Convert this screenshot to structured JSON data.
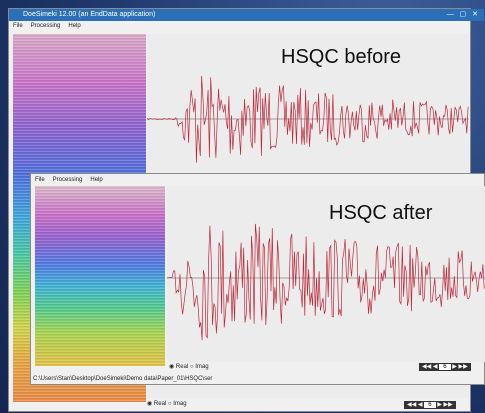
{
  "windows": [
    {
      "title": "DoeSimeki 12.00 (an EndData application)",
      "menu": [
        "File",
        "Processing",
        "Help"
      ],
      "label": "HSQC before",
      "view": {
        "real": "Real",
        "imag": "Imag",
        "page": "6"
      }
    },
    {
      "menu": [
        "File",
        "Processing",
        "Help"
      ],
      "label": "HSQC after",
      "path": "C:\\Users\\Stan\\Desktop\\DoeSimeki\\Demo data\\Paper_01\\HSQC\\ser",
      "view": {
        "real": "Real",
        "imag": "Imag",
        "page": "6"
      }
    }
  ]
}
